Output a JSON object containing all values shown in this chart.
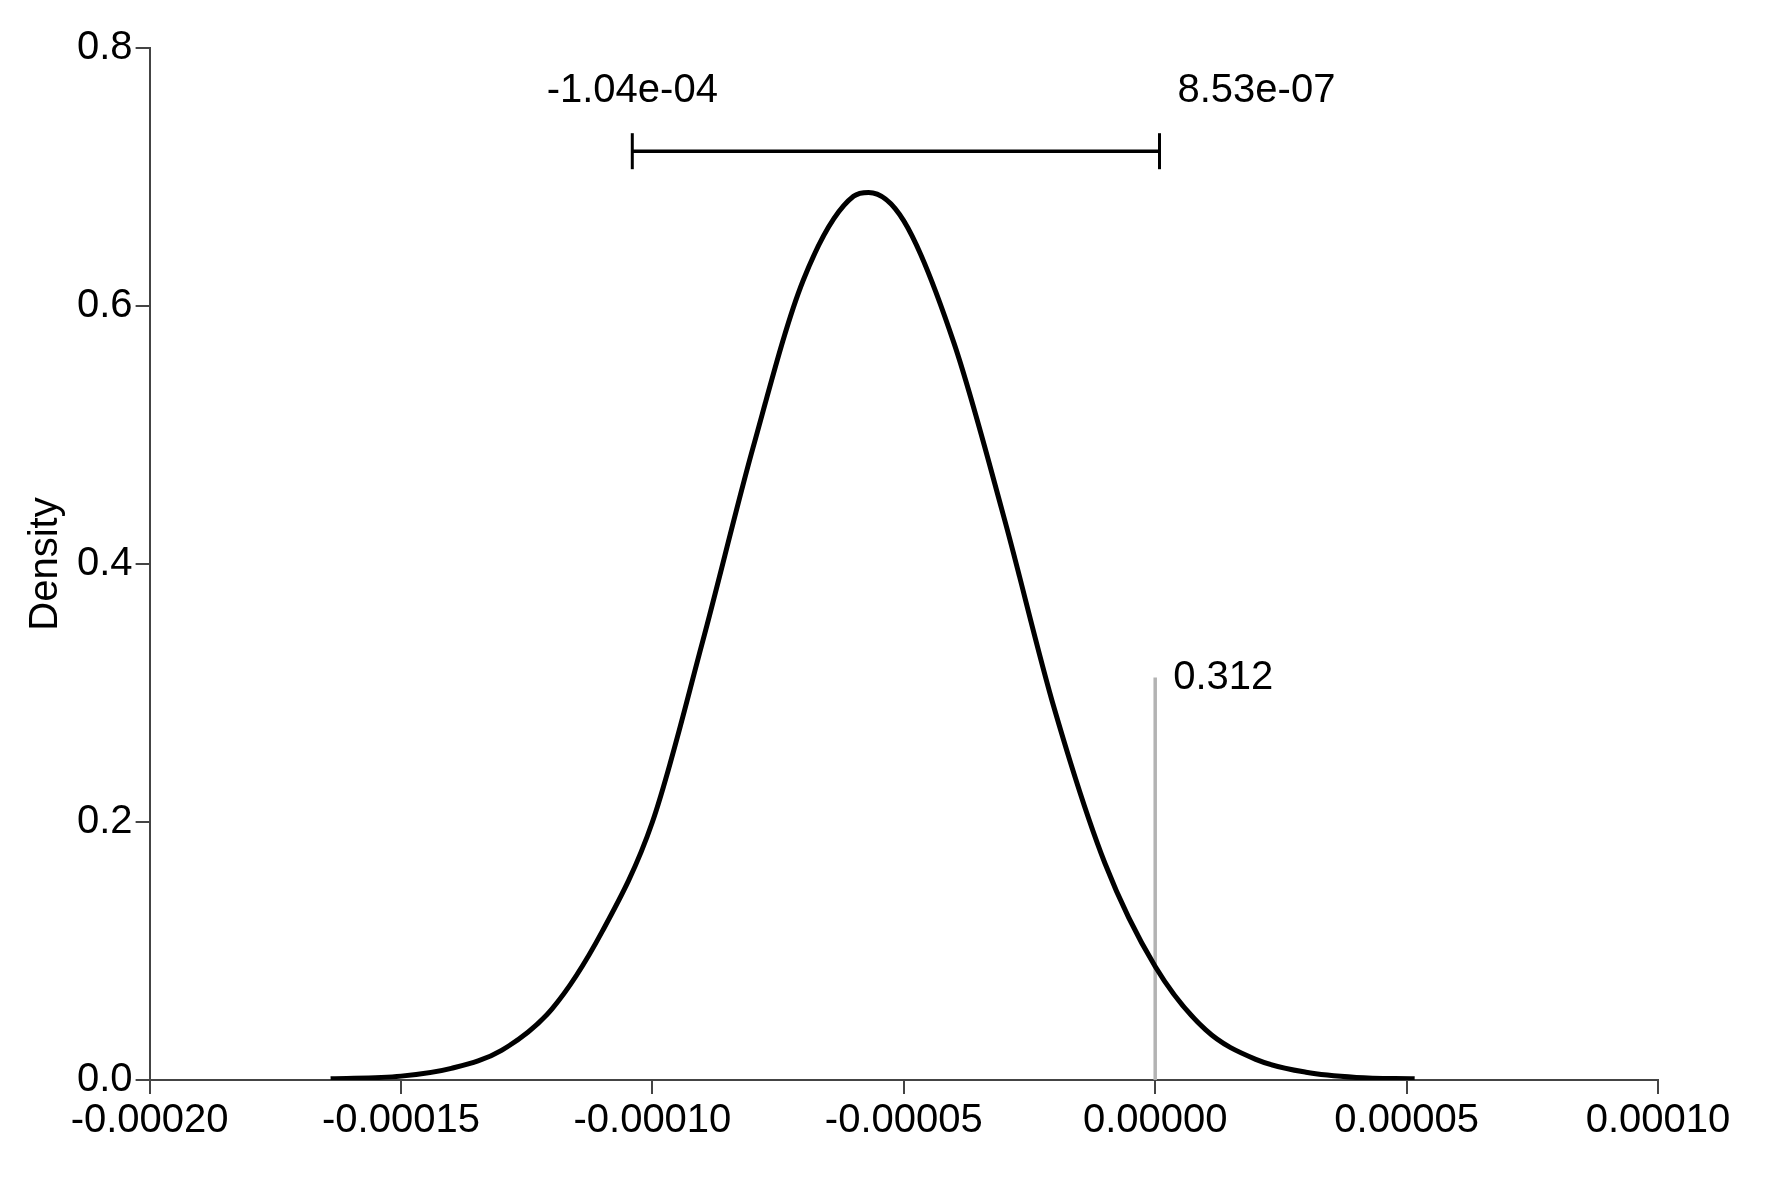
{
  "chart_data": {
    "type": "line",
    "ylabel": "Density",
    "xlim": [
      -0.0002,
      0.0001
    ],
    "ylim": [
      0,
      0.8
    ],
    "xticks": [
      {
        "value": -0.0002,
        "label": "-0.00020"
      },
      {
        "value": -0.00015,
        "label": "-0.00015"
      },
      {
        "value": -0.0001,
        "label": "-0.00010"
      },
      {
        "value": -5e-05,
        "label": "-0.00005"
      },
      {
        "value": 0,
        "label": "0.00000"
      },
      {
        "value": 5e-05,
        "label": "0.00005"
      },
      {
        "value": 0.0001,
        "label": "0.00010"
      }
    ],
    "yticks": [
      {
        "value": 0,
        "label": "0.0"
      },
      {
        "value": 0.2,
        "label": "0.2"
      },
      {
        "value": 0.4,
        "label": "0.4"
      },
      {
        "value": 0.6,
        "label": "0.6"
      },
      {
        "value": 0.8,
        "label": "0.8"
      }
    ],
    "grid": false,
    "legend": false,
    "marker": "none",
    "line_style": "solid",
    "series": [
      {
        "color": "#000000",
        "x": [
          -0.000164,
          -0.00015,
          -0.00014,
          -0.00013,
          -0.00012,
          -0.00011,
          -0.0001,
          -9e-05,
          -8e-05,
          -7e-05,
          -6e-05,
          -5.7e-05,
          -5e-05,
          -4e-05,
          -3e-05,
          -2e-05,
          -1e-05,
          0,
          1e-05,
          2e-05,
          3e-05,
          4e-05,
          5.16e-05
        ],
        "values": [
          0.001,
          0.003,
          0.009,
          0.023,
          0.055,
          0.115,
          0.2,
          0.34,
          0.49,
          0.62,
          0.685,
          0.688,
          0.666,
          0.571,
          0.435,
          0.287,
          0.168,
          0.088,
          0.039,
          0.016,
          0.006,
          0.002,
          0.001
        ]
      },
      {
        "color": "#b3b3b3",
        "x": [
          0,
          0
        ],
        "values": [
          0,
          0.312
        ]
      },
      {
        "color": "#000000",
        "x": [
          -0.000104,
          8.53e-07
        ],
        "values": [
          0.72,
          0.72
        ]
      }
    ],
    "annotations": [
      {
        "text": "-1.04e-04",
        "x": -0.000104,
        "y": 0.72
      },
      {
        "text": "8.53e-07",
        "x": 8.53e-07,
        "y": 0.72
      },
      {
        "text": "0.312",
        "x": 0,
        "y": 0.312
      }
    ]
  }
}
